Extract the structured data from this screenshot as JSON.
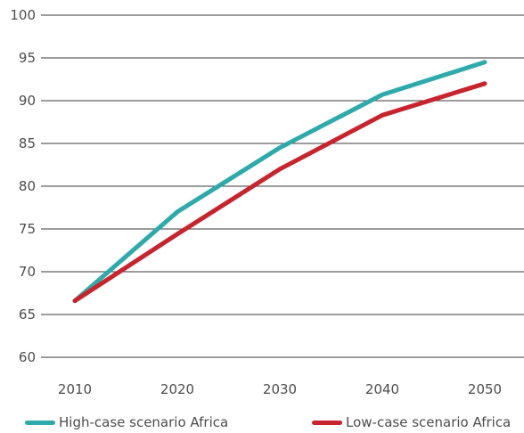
{
  "chart_data": {
    "type": "line",
    "title": "",
    "xlabel": "",
    "ylabel": "",
    "x": [
      2010,
      2020,
      2030,
      2040,
      2050
    ],
    "x_ticks": [
      "2010",
      "2020",
      "2030",
      "2040",
      "2050"
    ],
    "ylim": [
      60,
      100
    ],
    "y_ticks": [
      "60",
      "65",
      "70",
      "75",
      "80",
      "85",
      "90",
      "95",
      "100"
    ],
    "grid": "horizontal",
    "legend_position": "bottom",
    "series": [
      {
        "name": "High-case scenario Africa",
        "color": "#2eaaaa",
        "values": [
          66.6,
          77.0,
          84.5,
          90.7,
          94.5
        ]
      },
      {
        "name": "Low-case scenario Africa",
        "color": "#c8242e",
        "values": [
          66.6,
          74.4,
          82.0,
          88.3,
          92.0
        ]
      }
    ]
  }
}
